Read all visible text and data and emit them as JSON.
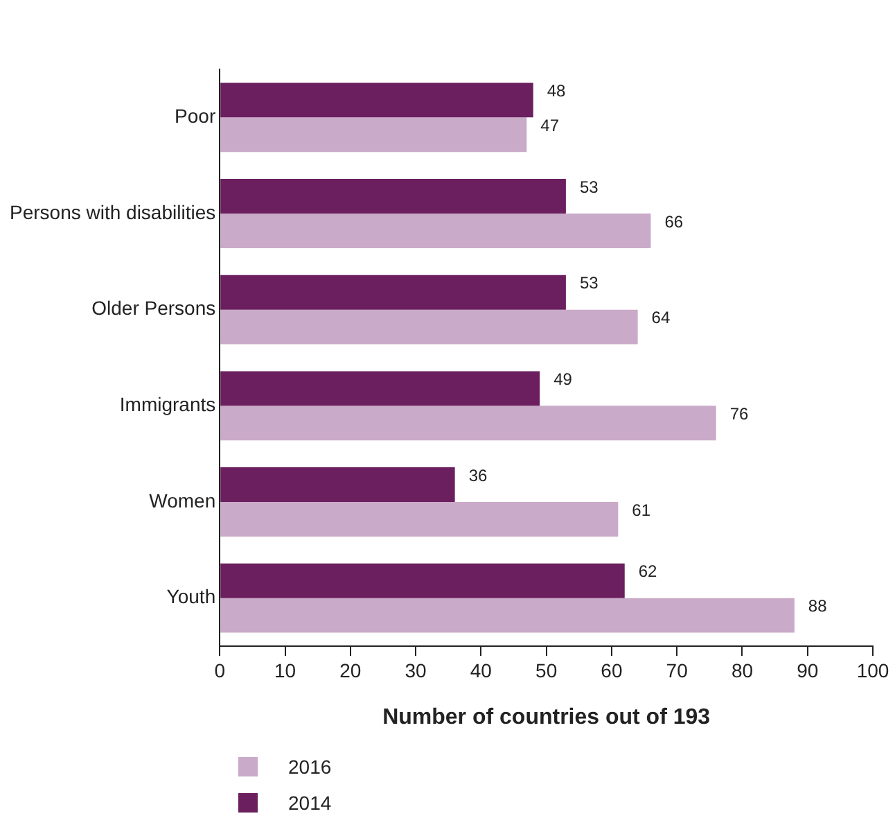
{
  "chart_data": {
    "type": "bar",
    "orientation": "horizontal",
    "xlabel": "Number of countries out of 193",
    "categories": [
      "Poor",
      "Persons with disabilities",
      "Older Persons",
      "Immigrants",
      "Women",
      "Youth"
    ],
    "series": [
      {
        "name": "2014",
        "color": "#6b1f5f",
        "values": [
          48,
          53,
          53,
          49,
          36,
          62
        ]
      },
      {
        "name": "2016",
        "color": "#c9aac8",
        "values": [
          47,
          66,
          64,
          76,
          61,
          88
        ]
      }
    ],
    "xlim": [
      0,
      100
    ],
    "xticks": [
      0,
      10,
      20,
      30,
      40,
      50,
      60,
      70,
      80,
      90,
      100
    ],
    "grid": false,
    "legend": "bottom left",
    "data_labels": true
  }
}
